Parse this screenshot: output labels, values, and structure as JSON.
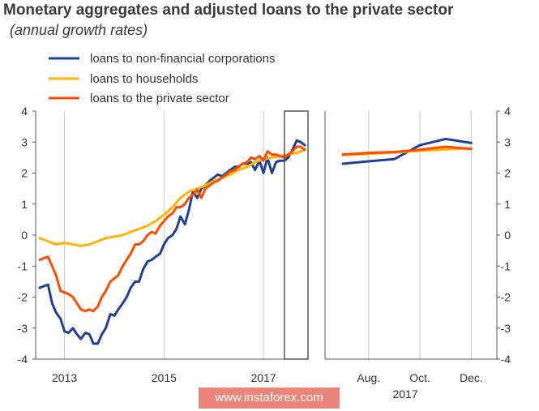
{
  "header": {
    "title": "Monetary aggregates and adjusted loans to the private sector",
    "subtitle": "(annual growth rates)"
  },
  "watermark": "www.instaforex.com",
  "chart_data": {
    "type": "line",
    "title": "Monetary aggregates and adjusted loans to the private sector",
    "subtitle": "(annual growth rates)",
    "ylim": [
      -4,
      4
    ],
    "yticks": [
      4,
      3,
      2,
      1,
      0,
      -1,
      -2,
      -3,
      -4
    ],
    "legend": {
      "placement": "top-left"
    },
    "grid": "vertical only",
    "series_meta": [
      {
        "name": "loans to non-financial corporations",
        "color": "#1f3f99"
      },
      {
        "name": "loans to households",
        "color": "#ffb400"
      },
      {
        "name": "loans to the private sector",
        "color": "#ff4b00"
      }
    ],
    "left_panel": {
      "x_ticks": [
        "2013",
        "2015",
        "2017"
      ],
      "x_tick_values": [
        2013.0,
        2015.0,
        2017.0
      ],
      "xlim": [
        2012.42,
        2017.83
      ],
      "highlight_range": [
        2017.42,
        2017.92
      ],
      "series": [
        {
          "name": "loans to non-financial corporations",
          "x": [
            2012.5,
            2012.58,
            2012.67,
            2012.75,
            2012.83,
            2012.92,
            2013.0,
            2013.08,
            2013.17,
            2013.25,
            2013.33,
            2013.42,
            2013.5,
            2013.58,
            2013.67,
            2013.75,
            2013.83,
            2013.92,
            2014.0,
            2014.08,
            2014.17,
            2014.25,
            2014.33,
            2014.42,
            2014.5,
            2014.58,
            2014.67,
            2014.75,
            2014.83,
            2014.92,
            2015.0,
            2015.08,
            2015.17,
            2015.25,
            2015.33,
            2015.42,
            2015.5,
            2015.58,
            2015.67,
            2015.75,
            2015.83,
            2015.92,
            2016.0,
            2016.08,
            2016.17,
            2016.25,
            2016.33,
            2016.42,
            2016.5,
            2016.58,
            2016.67,
            2016.75,
            2016.83,
            2016.92,
            2017.0,
            2017.08,
            2017.17,
            2017.25,
            2017.33,
            2017.42,
            2017.5,
            2017.58,
            2017.67,
            2017.75,
            2017.83
          ],
          "y": [
            -1.7,
            -1.65,
            -1.6,
            -2.2,
            -2.5,
            -2.7,
            -3.1,
            -3.15,
            -3.0,
            -3.2,
            -3.35,
            -3.15,
            -3.2,
            -3.5,
            -3.5,
            -3.2,
            -3.0,
            -2.55,
            -2.6,
            -2.4,
            -2.2,
            -2.0,
            -1.7,
            -1.5,
            -1.5,
            -1.1,
            -0.85,
            -0.8,
            -0.7,
            -0.6,
            -0.3,
            -0.1,
            0.0,
            0.2,
            0.6,
            0.35,
            0.8,
            1.4,
            1.2,
            1.5,
            1.6,
            1.75,
            1.85,
            1.95,
            1.9,
            2.0,
            2.1,
            2.2,
            2.2,
            2.3,
            2.3,
            2.35,
            2.1,
            2.4,
            2.0,
            2.5,
            2.0,
            2.35,
            2.4,
            2.4,
            2.5,
            2.75,
            3.05,
            3.0,
            2.9
          ]
        },
        {
          "name": "loans to households",
          "x": [
            2012.5,
            2012.67,
            2012.83,
            2013.0,
            2013.17,
            2013.33,
            2013.5,
            2013.67,
            2013.83,
            2014.0,
            2014.17,
            2014.33,
            2014.5,
            2014.67,
            2014.83,
            2015.0,
            2015.17,
            2015.33,
            2015.5,
            2015.67,
            2015.83,
            2016.0,
            2016.17,
            2016.33,
            2016.5,
            2016.67,
            2016.83,
            2017.0,
            2017.17,
            2017.33,
            2017.5,
            2017.67,
            2017.83
          ],
          "y": [
            -0.1,
            -0.2,
            -0.3,
            -0.25,
            -0.3,
            -0.35,
            -0.3,
            -0.2,
            -0.1,
            -0.05,
            0.0,
            0.1,
            0.2,
            0.3,
            0.45,
            0.65,
            0.9,
            1.2,
            1.4,
            1.5,
            1.6,
            1.75,
            1.85,
            1.95,
            2.1,
            2.2,
            2.35,
            2.45,
            2.5,
            2.55,
            2.6,
            2.65,
            2.75
          ]
        },
        {
          "name": "loans to the private sector",
          "x": [
            2012.5,
            2012.58,
            2012.67,
            2012.75,
            2012.83,
            2012.92,
            2013.0,
            2013.08,
            2013.17,
            2013.25,
            2013.33,
            2013.42,
            2013.5,
            2013.58,
            2013.67,
            2013.75,
            2013.83,
            2013.92,
            2014.0,
            2014.08,
            2014.17,
            2014.25,
            2014.33,
            2014.42,
            2014.5,
            2014.58,
            2014.67,
            2014.75,
            2014.83,
            2014.92,
            2015.0,
            2015.08,
            2015.17,
            2015.25,
            2015.33,
            2015.42,
            2015.5,
            2015.58,
            2015.67,
            2015.75,
            2015.83,
            2015.92,
            2016.0,
            2016.08,
            2016.17,
            2016.25,
            2016.33,
            2016.42,
            2016.5,
            2016.58,
            2016.67,
            2016.75,
            2016.83,
            2016.92,
            2017.0,
            2017.08,
            2017.17,
            2017.25,
            2017.33,
            2017.42,
            2017.5,
            2017.58,
            2017.67,
            2017.75,
            2017.83
          ],
          "y": [
            -0.8,
            -0.75,
            -0.7,
            -1.0,
            -1.3,
            -1.8,
            -1.85,
            -1.9,
            -2.0,
            -2.2,
            -2.4,
            -2.45,
            -2.4,
            -2.45,
            -2.3,
            -2.0,
            -1.8,
            -1.5,
            -1.4,
            -1.3,
            -1.0,
            -0.8,
            -0.6,
            -0.3,
            -0.3,
            -0.2,
            0.0,
            0.1,
            0.05,
            0.3,
            0.45,
            0.6,
            0.7,
            0.9,
            0.9,
            1.0,
            1.2,
            1.3,
            1.45,
            1.2,
            1.5,
            1.6,
            1.7,
            1.75,
            1.85,
            1.95,
            2.05,
            2.1,
            2.2,
            2.3,
            2.35,
            2.5,
            2.45,
            2.55,
            2.4,
            2.7,
            2.6,
            2.6,
            2.55,
            2.5,
            2.6,
            2.7,
            2.85,
            2.85,
            2.75
          ]
        }
      ]
    },
    "right_panel": {
      "x_ticks": [
        "Aug.",
        "Oct.",
        "Dec."
      ],
      "x_tick_values": [
        8,
        10,
        12
      ],
      "year_label": "2017",
      "xlim": [
        6.3,
        13.0
      ],
      "series": [
        {
          "name": "loans to non-financial corporations",
          "x": [
            7,
            8,
            9,
            10,
            11,
            12
          ],
          "y": [
            2.3,
            2.38,
            2.45,
            2.9,
            3.1,
            2.97
          ]
        },
        {
          "name": "loans to households",
          "x": [
            7,
            8,
            9,
            10,
            11,
            12
          ],
          "y": [
            2.58,
            2.62,
            2.66,
            2.72,
            2.76,
            2.8
          ]
        },
        {
          "name": "loans to the private sector",
          "x": [
            7,
            8,
            9,
            10,
            11,
            12
          ],
          "y": [
            2.6,
            2.65,
            2.68,
            2.75,
            2.85,
            2.78
          ]
        }
      ]
    }
  }
}
